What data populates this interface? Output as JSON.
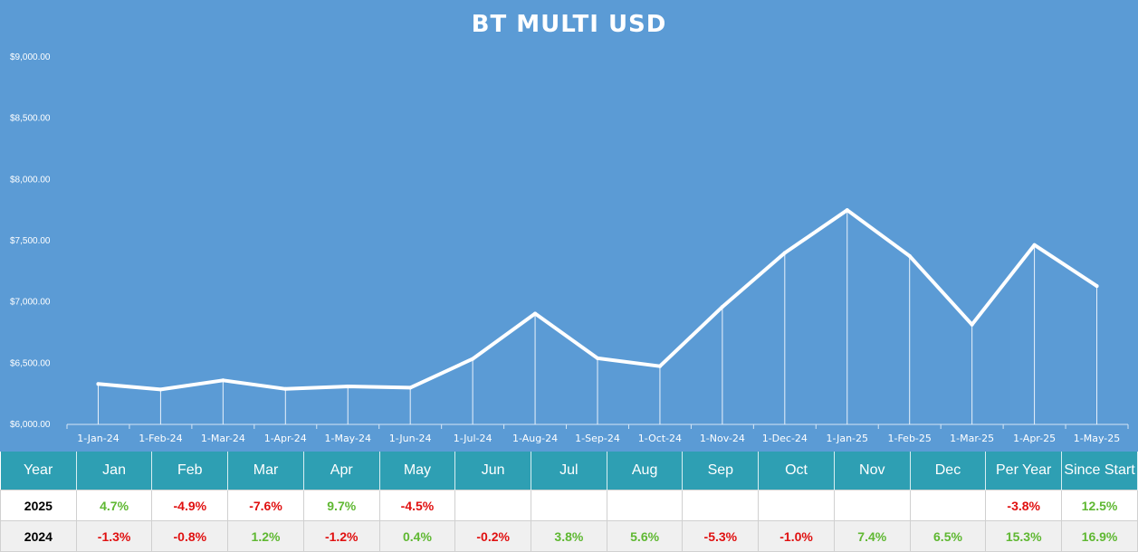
{
  "colors": {
    "background": "#5b9bd5",
    "line": "#ffffff",
    "table_header": "#2e9fb3",
    "positive": "#5fb832",
    "negative": "#e01010"
  },
  "chart_data": {
    "type": "line",
    "title": "BT MULTI USD",
    "x": [
      "1-Jan-24",
      "1-Feb-24",
      "1-Mar-24",
      "1-Apr-24",
      "1-May-24",
      "1-Jun-24",
      "1-Jul-24",
      "1-Aug-24",
      "1-Sep-24",
      "1-Oct-24",
      "1-Nov-24",
      "1-Dec-24",
      "1-Jan-25",
      "1-Feb-25",
      "1-Mar-25",
      "1-Apr-25",
      "1-May-25"
    ],
    "series": [
      {
        "values": [
          6330,
          6285,
          6360,
          6290,
          6310,
          6300,
          6535,
          6905,
          6540,
          6475,
          6960,
          7400,
          7750,
          7375,
          6815,
          7465,
          7130
        ]
      }
    ],
    "y_ticks": [
      "$6,000.00",
      "$6,500.00",
      "$7,000.00",
      "$7,500.00",
      "$8,000.00",
      "$8,500.00",
      "$9,000.00"
    ],
    "ylim": [
      6000,
      9000
    ],
    "drop_lines": true,
    "grid": false
  },
  "table": {
    "headers": [
      "Year",
      "Jan",
      "Feb",
      "Mar",
      "Apr",
      "May",
      "Jun",
      "Jul",
      "Aug",
      "Sep",
      "Oct",
      "Nov",
      "Dec",
      "Per Year",
      "Since Start"
    ],
    "rows": [
      {
        "cells": [
          "2025",
          "4.7%",
          "-4.9%",
          "-7.6%",
          "9.7%",
          "-4.5%",
          "",
          "",
          "",
          "",
          "",
          "",
          "",
          "-3.8%",
          "12.5%"
        ]
      },
      {
        "cells": [
          "2024",
          "-1.3%",
          "-0.8%",
          "1.2%",
          "-1.2%",
          "0.4%",
          "-0.2%",
          "3.8%",
          "5.6%",
          "-5.3%",
          "-1.0%",
          "7.4%",
          "6.5%",
          "15.3%",
          "16.9%"
        ]
      }
    ]
  }
}
